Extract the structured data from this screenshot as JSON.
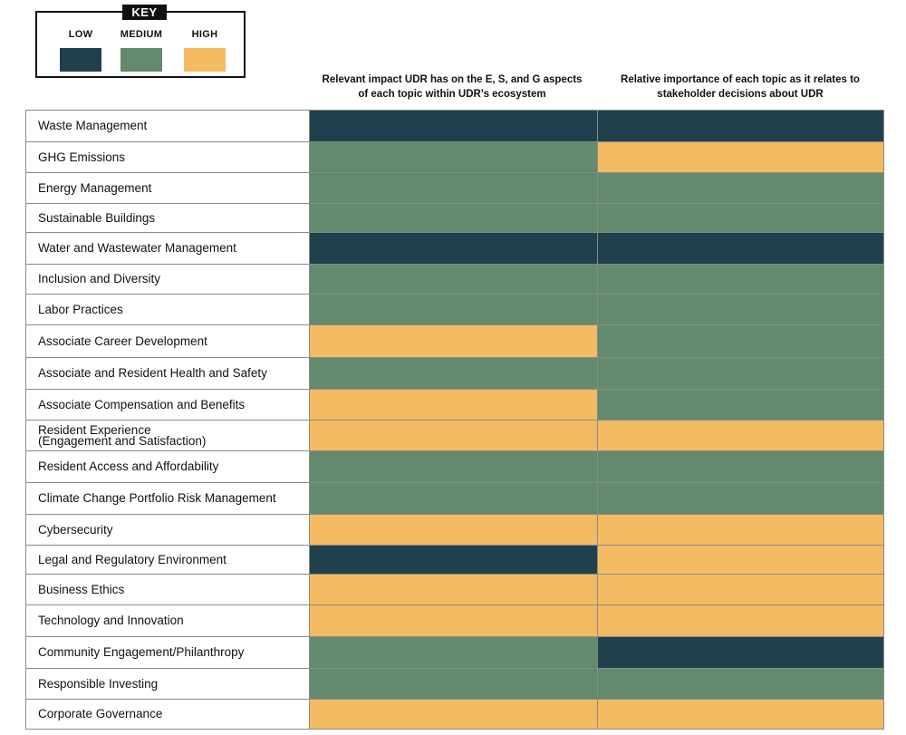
{
  "key": {
    "title": "KEY",
    "items": [
      {
        "label": "LOW",
        "level": "low"
      },
      {
        "label": "MEDIUM",
        "level": "medium"
      },
      {
        "label": "HIGH",
        "level": "high"
      }
    ]
  },
  "colors": {
    "low": "#21404e",
    "medium": "#638a6c",
    "high": "#f4bb63"
  },
  "chart_data": {
    "type": "table",
    "columns": [
      "Relevant impact UDR has on the E, S, and G aspects of each topic within UDR’s ecosystem",
      "Relative importance of each topic as it relates to stakeholder decisions about UDR"
    ],
    "rows": [
      {
        "topic": "Waste Management",
        "values": [
          "low",
          "low"
        ]
      },
      {
        "topic": "GHG Emissions",
        "values": [
          "medium",
          "high"
        ]
      },
      {
        "topic": "Energy Management",
        "values": [
          "medium",
          "medium"
        ]
      },
      {
        "topic": "Sustainable Buildings",
        "values": [
          "medium",
          "medium"
        ]
      },
      {
        "topic": "Water and Wastewater Management",
        "values": [
          "low",
          "low"
        ]
      },
      {
        "topic": "Inclusion and Diversity",
        "values": [
          "medium",
          "medium"
        ]
      },
      {
        "topic": "Labor Practices",
        "values": [
          "medium",
          "medium"
        ]
      },
      {
        "topic": "Associate Career Development",
        "values": [
          "high",
          "medium"
        ]
      },
      {
        "topic": "Associate and Resident Health and Safety",
        "values": [
          "medium",
          "medium"
        ]
      },
      {
        "topic": "Associate Compensation and Benefits",
        "values": [
          "high",
          "medium"
        ]
      },
      {
        "topic": "Resident Experience\n(Engagement and Satisfaction)",
        "values": [
          "high",
          "high"
        ]
      },
      {
        "topic": "Resident Access and Affordability",
        "values": [
          "medium",
          "medium"
        ]
      },
      {
        "topic": "Climate Change Portfolio Risk Management",
        "values": [
          "medium",
          "medium"
        ]
      },
      {
        "topic": "Cybersecurity",
        "values": [
          "high",
          "high"
        ]
      },
      {
        "topic": "Legal and Regulatory Environment",
        "values": [
          "low",
          "high"
        ]
      },
      {
        "topic": "Business Ethics",
        "values": [
          "high",
          "high"
        ]
      },
      {
        "topic": "Technology and Innovation",
        "values": [
          "high",
          "high"
        ]
      },
      {
        "topic": "Community Engagement/Philanthropy",
        "values": [
          "medium",
          "low"
        ]
      },
      {
        "topic": "Responsible Investing",
        "values": [
          "medium",
          "medium"
        ]
      },
      {
        "topic": "Corporate Governance",
        "values": [
          "high",
          "high"
        ]
      }
    ]
  }
}
